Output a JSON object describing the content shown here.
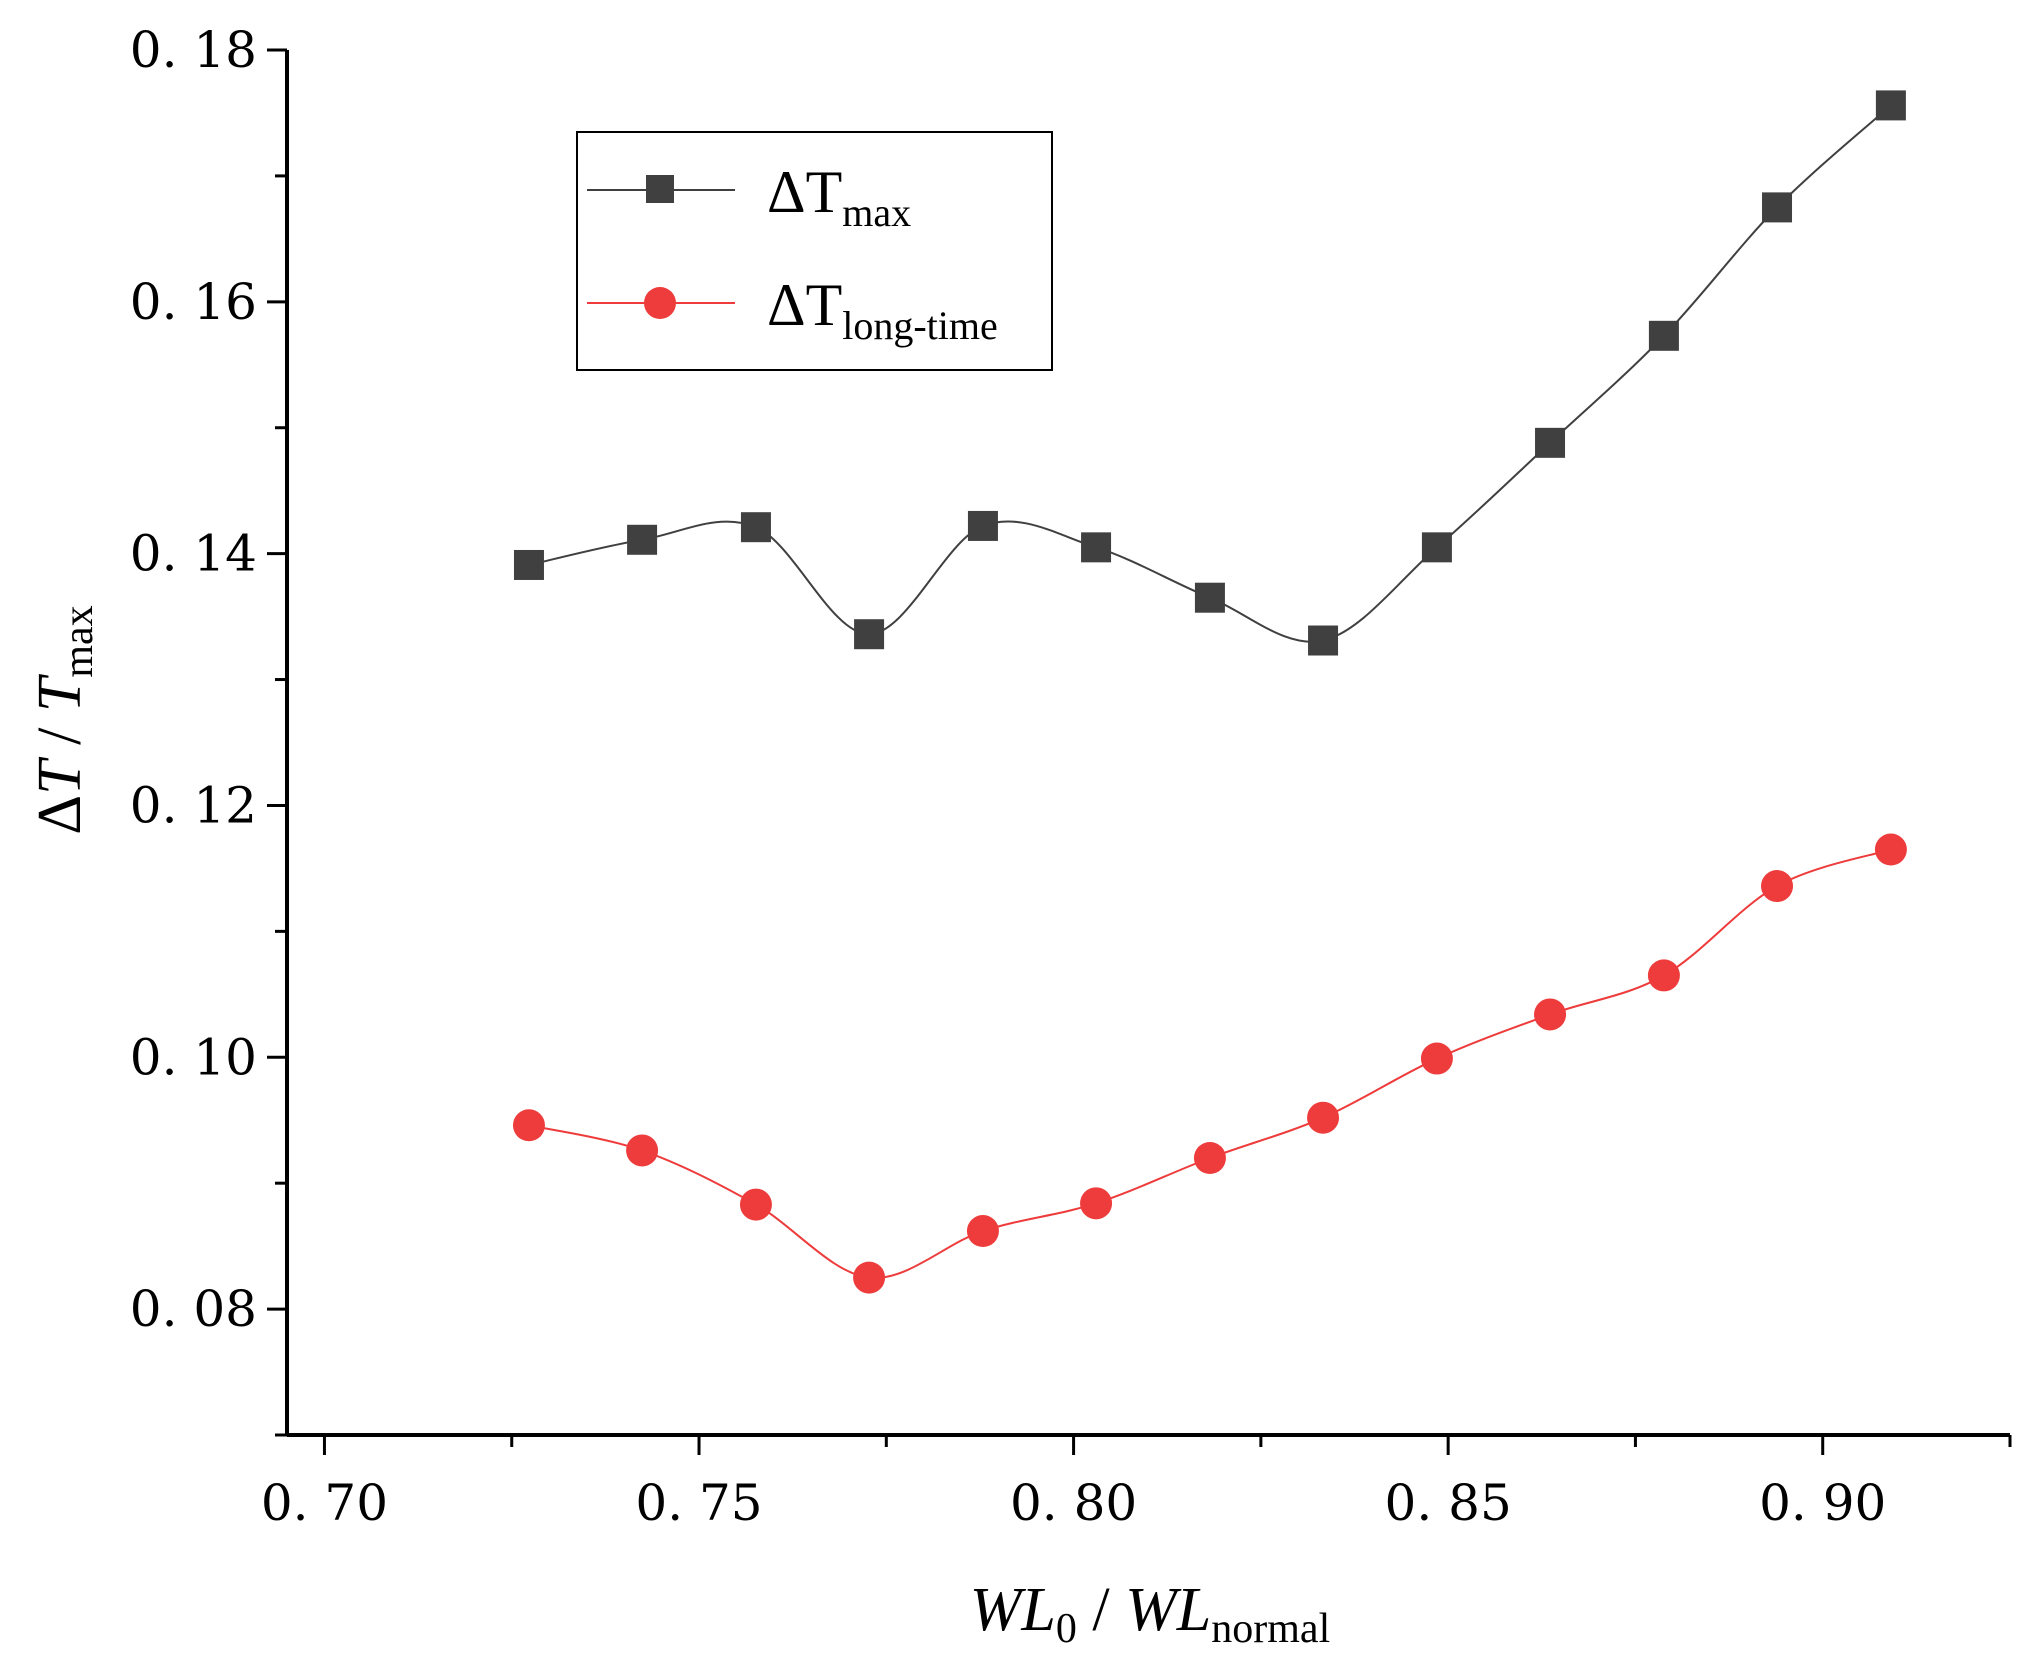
{
  "chart_data": {
    "type": "line",
    "title": "",
    "xlabel": {
      "main": "WL",
      "sub1": "0",
      "sep": " / ",
      "main2": "WL",
      "sub2": "normal"
    },
    "ylabel": {
      "delta": "Δ",
      "main": "T",
      "sep": " / ",
      "main2": "T",
      "sub": "max"
    },
    "xlim": [
      0.695,
      0.925
    ],
    "ylim": [
      0.07,
      0.18
    ],
    "x_ticks": [
      0.7,
      0.75,
      0.8,
      0.85,
      0.9
    ],
    "x_tick_labels": [
      "0. 70",
      "0. 75",
      "0. 80",
      "0. 85",
      "0. 90"
    ],
    "y_ticks": [
      0.08,
      0.1,
      0.12,
      0.14,
      0.16,
      0.18
    ],
    "y_tick_labels": [
      "0. 08",
      "0. 10",
      "0. 12",
      "0. 14",
      "0. 16",
      "0. 18"
    ],
    "legend_position": "top-left",
    "grid": false,
    "x": [
      0.7273,
      0.7424,
      0.7576,
      0.7727,
      0.7879,
      0.803,
      0.8182,
      0.8333,
      0.8485,
      0.8636,
      0.8788,
      0.8939,
      0.9091
    ],
    "series": [
      {
        "name": "ΔT_max",
        "label_main": "ΔT",
        "label_sub": "max",
        "marker": "square",
        "color": "#404040",
        "line_color": "#404040",
        "values": [
          0.1391,
          0.1411,
          0.1421,
          0.1336,
          0.1422,
          0.1405,
          0.1365,
          0.1331,
          0.1405,
          0.1488,
          0.1573,
          0.1675,
          0.1756
        ]
      },
      {
        "name": "ΔT_long-time",
        "label_main": "ΔT",
        "label_sub": "long-time",
        "marker": "circle",
        "color": "#ee3b3b",
        "line_color": "#ee3b3b",
        "values": [
          0.0946,
          0.0926,
          0.0883,
          0.0825,
          0.0862,
          0.0884,
          0.092,
          0.0952,
          0.0999,
          0.1034,
          0.1065,
          0.1136,
          0.1165
        ]
      }
    ]
  }
}
